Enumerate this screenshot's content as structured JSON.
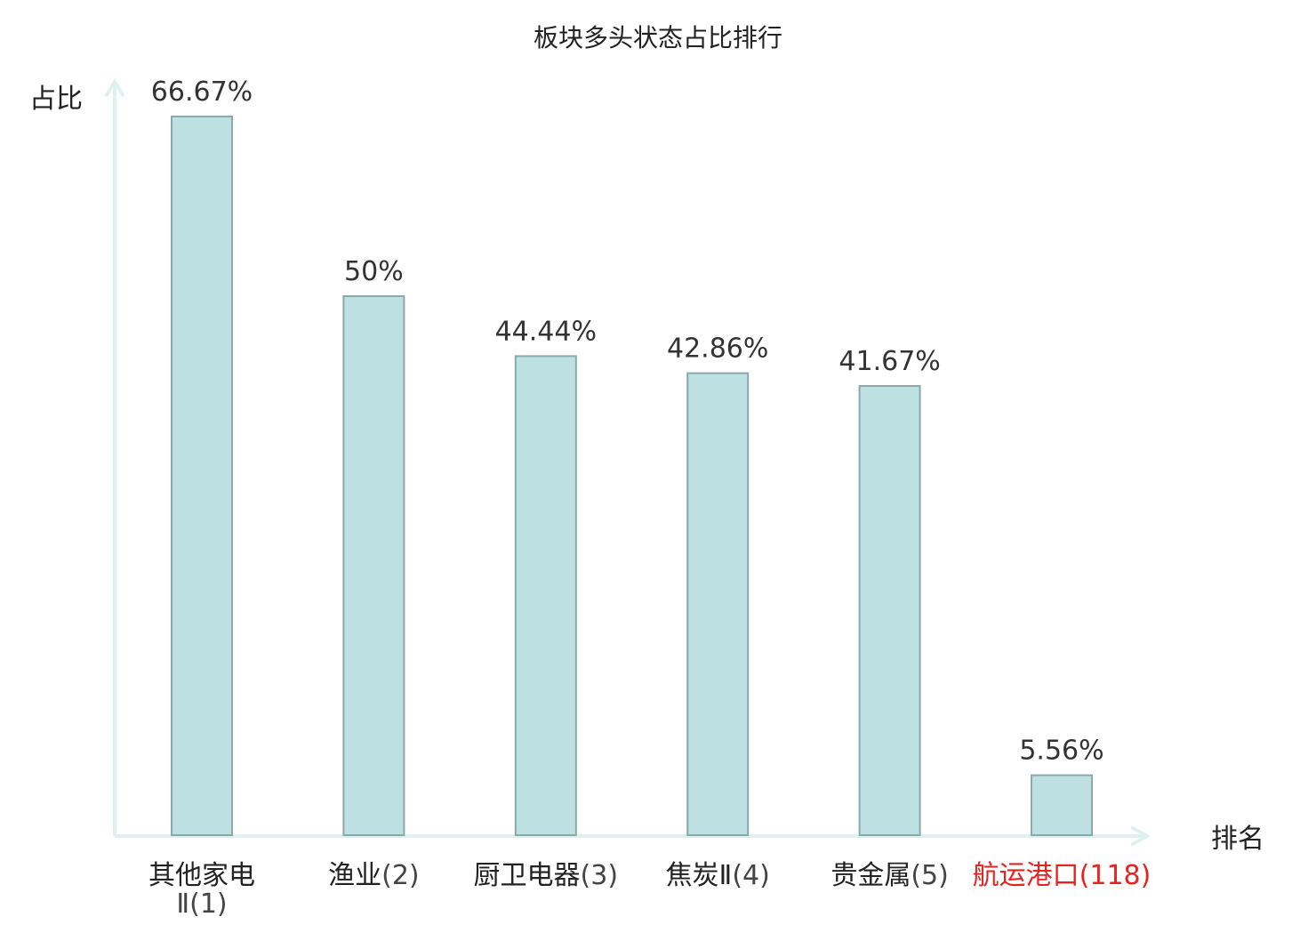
{
  "chart_data": {
    "type": "bar",
    "title": "板块多头状态占比排行",
    "ylabel": "占比",
    "xlabel": "排名",
    "categories": [
      {
        "name": "其他家电Ⅱ",
        "rank": "(1)"
      },
      {
        "name": "渔业",
        "rank": "(2)"
      },
      {
        "name": "厨卫电器",
        "rank": "(3)"
      },
      {
        "name": "焦炭Ⅱ",
        "rank": "(4)"
      },
      {
        "name": "贵金属",
        "rank": "(5)"
      },
      {
        "name": "航运港口",
        "rank": "(118)"
      }
    ],
    "values": [
      66.67,
      50,
      44.44,
      42.86,
      41.67,
      5.56
    ],
    "value_labels": [
      "66.67%",
      "50%",
      "44.44%",
      "42.86%",
      "41.67%",
      "5.56%"
    ],
    "highlight_index": 5,
    "ylim": [
      0,
      70
    ],
    "grid": false,
    "colors": {
      "bar_fill": "#bde0e2",
      "bar_stroke": "#8aa9ab",
      "axis": "#dff1ef",
      "highlight_text": "#e8231f"
    }
  }
}
